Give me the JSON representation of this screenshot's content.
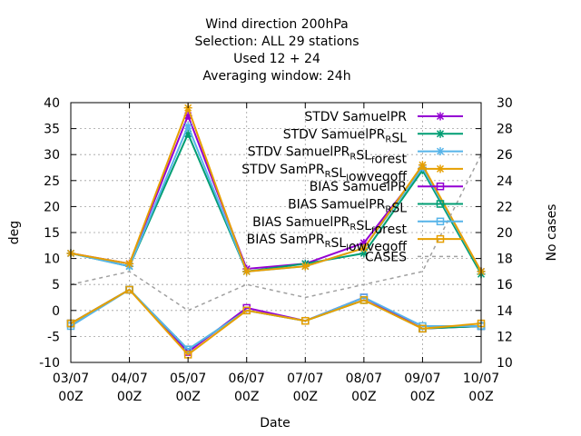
{
  "chart_data": {
    "type": "line",
    "title": [
      "Wind direction 200hPa",
      "Selection: ALL      29 stations",
      "Used  12 + 24",
      "Averaging window: 24h"
    ],
    "xlabel": "Date",
    "ylabel": "deg",
    "y2label": "No cases",
    "categories": [
      [
        "03/07",
        "00Z"
      ],
      [
        "04/07",
        "00Z"
      ],
      [
        "05/07",
        "00Z"
      ],
      [
        "06/07",
        "00Z"
      ],
      [
        "07/07",
        "00Z"
      ],
      [
        "08/07",
        "00Z"
      ],
      [
        "09/07",
        "00Z"
      ],
      [
        "10/07",
        "00Z"
      ]
    ],
    "ylim": [
      -10,
      40
    ],
    "yticks": [
      "-10",
      "-5",
      "0",
      "5",
      "10",
      "15",
      "20",
      "25",
      "30",
      "35",
      "40"
    ],
    "y2lim": [
      10,
      30
    ],
    "y2ticks": [
      "10",
      "12",
      "14",
      "16",
      "18",
      "20",
      "22",
      "24",
      "26",
      "28",
      "30"
    ],
    "grid": true,
    "legend_position": "top-right",
    "series": [
      {
        "name": "STDV SamuelPR",
        "name_parts": [
          [
            "STDV SamuelPR",
            ""
          ]
        ],
        "axis": "y1",
        "color": "#9400d3",
        "marker": "x",
        "values": [
          11.0,
          9.0,
          37.5,
          8.0,
          9.0,
          13.0,
          27.5,
          7.5
        ]
      },
      {
        "name": "STDV SamuelPR_RSL",
        "name_parts": [
          [
            "STDV SamuelPR",
            ""
          ],
          [
            "R",
            "sub"
          ],
          [
            "SL",
            ""
          ]
        ],
        "axis": "y1",
        "color": "#009e73",
        "marker": "x",
        "values": [
          11.0,
          8.5,
          34.0,
          7.5,
          9.0,
          11.0,
          27.0,
          7.0
        ]
      },
      {
        "name": "STDV SamuelPR_RSL_forest",
        "name_parts": [
          [
            "STDV SamuelPR",
            ""
          ],
          [
            "R",
            "sub"
          ],
          [
            "SL",
            ""
          ],
          [
            "f",
            "sub"
          ],
          [
            "orest",
            ""
          ]
        ],
        "axis": "y1",
        "color": "#56b4e9",
        "marker": "x",
        "values": [
          11.0,
          8.5,
          35.5,
          7.5,
          8.5,
          12.0,
          27.5,
          7.5
        ]
      },
      {
        "name": "STDV SamPR_RSL_lowvegoff",
        "name_parts": [
          [
            "STDV SamPR",
            ""
          ],
          [
            "R",
            "sub"
          ],
          [
            "SL",
            ""
          ],
          [
            "l",
            "sub"
          ],
          [
            "owvegoff",
            ""
          ]
        ],
        "axis": "y1",
        "color": "#e69f00",
        "marker": "x",
        "values": [
          11.0,
          9.0,
          39.0,
          7.5,
          8.5,
          12.0,
          28.0,
          7.5
        ]
      },
      {
        "name": "BIAS SamuelPR",
        "name_parts": [
          [
            "BIAS SamuelPR",
            ""
          ]
        ],
        "axis": "y1",
        "color": "#9400d3",
        "marker": "square",
        "values": [
          -2.5,
          4.0,
          -8.0,
          0.5,
          -2.0,
          2.5,
          -3.5,
          -3.0
        ]
      },
      {
        "name": "BIAS SamuelPR_RSL",
        "name_parts": [
          [
            "BIAS SamuelPR",
            ""
          ],
          [
            "R",
            "sub"
          ],
          [
            "SL",
            ""
          ]
        ],
        "axis": "y1",
        "color": "#009e73",
        "marker": "square",
        "values": [
          -2.5,
          4.0,
          -7.5,
          0.0,
          -2.0,
          2.0,
          -3.5,
          -3.0
        ]
      },
      {
        "name": "BIAS SamuelPR_RSL_forest",
        "name_parts": [
          [
            "BIAS SamuelPR",
            ""
          ],
          [
            "R",
            "sub"
          ],
          [
            "SL",
            ""
          ],
          [
            "f",
            "sub"
          ],
          [
            "orest",
            ""
          ]
        ],
        "axis": "y1",
        "color": "#56b4e9",
        "marker": "square",
        "values": [
          -3.0,
          4.0,
          -7.5,
          0.0,
          -2.0,
          2.5,
          -3.0,
          -3.0
        ]
      },
      {
        "name": "BIAS SamPR_RSL_lowvegoff",
        "name_parts": [
          [
            "BIAS SamPR",
            ""
          ],
          [
            "R",
            "sub"
          ],
          [
            "SL",
            ""
          ],
          [
            "l",
            "sub"
          ],
          [
            "owvegoff",
            ""
          ]
        ],
        "axis": "y1",
        "color": "#e69f00",
        "marker": "square",
        "values": [
          -2.5,
          4.0,
          -8.5,
          0.0,
          -2.0,
          2.0,
          -3.5,
          -2.5
        ]
      },
      {
        "name": "CASES",
        "name_parts": [
          [
            "CASES",
            ""
          ]
        ],
        "axis": "y2",
        "color": "#a0a0a0",
        "marker": "none",
        "dash": true,
        "values": [
          16,
          17,
          14,
          16,
          15,
          16,
          17,
          26
        ]
      }
    ]
  }
}
